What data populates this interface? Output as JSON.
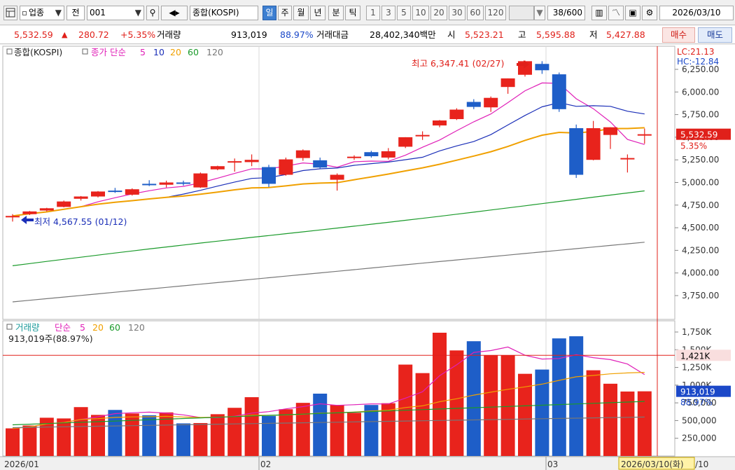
{
  "toolbar": {
    "market_label": "업종",
    "period_label": "전",
    "code": "001",
    "index_name": "종합(KOSPI)",
    "tabs": [
      {
        "label": "일",
        "active": true
      },
      {
        "label": "주",
        "active": false
      },
      {
        "label": "월",
        "active": false
      },
      {
        "label": "년",
        "active": false
      },
      {
        "label": "분",
        "active": false
      },
      {
        "label": "틱",
        "active": false
      }
    ],
    "intervals": [
      "1",
      "3",
      "5",
      "10",
      "20",
      "30",
      "60",
      "120"
    ],
    "count": "38",
    "count_total": "/600",
    "date": "2026/03/10"
  },
  "quote": {
    "price": "5,532.59",
    "change_arrow": "▲",
    "change": "280.72",
    "change_pct": "+5.35%",
    "volume_label": "거래량",
    "volume": "913,019",
    "volume_pct": "88.97%",
    "amount_label": "거래대금",
    "amount": "28,402,340백만",
    "open_label": "시",
    "open": "5,523.21",
    "high_label": "고",
    "high": "5,595.88",
    "low_label": "저",
    "low": "5,427.88",
    "buy_label": "매수",
    "sell_label": "매도"
  },
  "price_panel": {
    "legend_name": "종합(KOSPI)",
    "legend_ma_label": "종가 단순",
    "ma_periods": [
      "5",
      "10",
      "20",
      "60",
      "120"
    ],
    "ma_colors": [
      "#e020b8",
      "#1b2fb8",
      "#f0a000",
      "#1a9a2a",
      "#777777"
    ],
    "lc": "LC:21.13",
    "hc": "HC:-12.84",
    "high_annotation": "최고 6,347.41 (02/27)",
    "low_annotation": "최저 4,567.55 (01/12)",
    "current_price_tag": "5,532.59",
    "current_pct_tag": "5.35%"
  },
  "volume_panel": {
    "legend_name": "거래량",
    "legend_ma_label": "단순",
    "ma_periods": [
      "5",
      "20",
      "60",
      "120"
    ],
    "volume_text": "913,019주(88.97%)",
    "hline_tag": "1,421K",
    "current_tag": "913,019",
    "current_pct": "88.97%"
  },
  "x_axis": {
    "labels": [
      "2026/01",
      "02",
      "03"
    ],
    "cursor_date": "2026/03/10(화)",
    "cursor_tail": "/10"
  },
  "chart_data": {
    "type": "candlestick",
    "y_ticks": [
      3750,
      4000,
      4250,
      4500,
      4750,
      5000,
      5250,
      5500,
      5750,
      6000,
      6250
    ],
    "y_tick_labels": [
      "3,750.00",
      "4,000.00",
      "4,250.00",
      "4,500.00",
      "4,750.00",
      "5,000.00",
      "5,250.00",
      "5,500.00",
      "5,750.00",
      "6,000.00",
      "6,250.00"
    ],
    "vol_ticks": [
      250000,
      500000,
      750000,
      1000000,
      1250000,
      1500000,
      1750000
    ],
    "vol_tick_labels": [
      "250,000",
      "500,000",
      "750,000",
      "1,000K",
      "1,250K",
      "1,500K",
      "1,750K"
    ],
    "vol_hline": 1421000,
    "candles": [
      {
        "o": 4620,
        "h": 4650,
        "l": 4568,
        "c": 4630,
        "v": 390000
      },
      {
        "o": 4650,
        "h": 4685,
        "l": 4640,
        "c": 4680,
        "v": 430000
      },
      {
        "o": 4690,
        "h": 4720,
        "l": 4680,
        "c": 4715,
        "v": 540000
      },
      {
        "o": 4730,
        "h": 4800,
        "l": 4725,
        "c": 4790,
        "v": 530000
      },
      {
        "o": 4820,
        "h": 4850,
        "l": 4800,
        "c": 4845,
        "v": 690000
      },
      {
        "o": 4845,
        "h": 4905,
        "l": 4835,
        "c": 4900,
        "v": 580000
      },
      {
        "o": 4910,
        "h": 4940,
        "l": 4885,
        "c": 4905,
        "v": 650000
      },
      {
        "o": 4865,
        "h": 4935,
        "l": 4855,
        "c": 4925,
        "v": 600000
      },
      {
        "o": 4985,
        "h": 5025,
        "l": 4960,
        "c": 4970,
        "v": 575000
      },
      {
        "o": 4975,
        "h": 5020,
        "l": 4945,
        "c": 5000,
        "v": 615000
      },
      {
        "o": 5000,
        "h": 5020,
        "l": 4965,
        "c": 4985,
        "v": 460000
      },
      {
        "o": 4945,
        "h": 5110,
        "l": 4940,
        "c": 5100,
        "v": 465000
      },
      {
        "o": 5145,
        "h": 5185,
        "l": 5135,
        "c": 5180,
        "v": 590000
      },
      {
        "o": 5235,
        "h": 5265,
        "l": 5120,
        "c": 5235,
        "v": 680000
      },
      {
        "o": 5225,
        "h": 5310,
        "l": 5180,
        "c": 5250,
        "v": 830000
      },
      {
        "o": 5170,
        "h": 5195,
        "l": 4950,
        "c": 4985,
        "v": 565000
      },
      {
        "o": 5085,
        "h": 5275,
        "l": 5075,
        "c": 5255,
        "v": 660000
      },
      {
        "o": 5270,
        "h": 5365,
        "l": 5240,
        "c": 5355,
        "v": 750000
      },
      {
        "o": 5245,
        "h": 5275,
        "l": 5155,
        "c": 5165,
        "v": 880000
      },
      {
        "o": 5030,
        "h": 5100,
        "l": 4910,
        "c": 5085,
        "v": 720000
      },
      {
        "o": 5275,
        "h": 5300,
        "l": 5250,
        "c": 5285,
        "v": 610000
      },
      {
        "o": 5335,
        "h": 5350,
        "l": 5275,
        "c": 5290,
        "v": 720000
      },
      {
        "o": 5275,
        "h": 5380,
        "l": 5255,
        "c": 5345,
        "v": 745000
      },
      {
        "o": 5395,
        "h": 5500,
        "l": 5380,
        "c": 5500,
        "v": 1290000
      },
      {
        "o": 5515,
        "h": 5565,
        "l": 5470,
        "c": 5525,
        "v": 1170000
      },
      {
        "o": 5630,
        "h": 5690,
        "l": 5610,
        "c": 5685,
        "v": 1740000
      },
      {
        "o": 5700,
        "h": 5820,
        "l": 5690,
        "c": 5805,
        "v": 1490000
      },
      {
        "o": 5890,
        "h": 5920,
        "l": 5810,
        "c": 5835,
        "v": 1620000
      },
      {
        "o": 5830,
        "h": 5950,
        "l": 5780,
        "c": 5935,
        "v": 1420000
      },
      {
        "o": 6055,
        "h": 6150,
        "l": 5980,
        "c": 6150,
        "v": 1420000
      },
      {
        "o": 6190,
        "h": 6347,
        "l": 6170,
        "c": 6340,
        "v": 1160000
      },
      {
        "o": 6310,
        "h": 6340,
        "l": 6200,
        "c": 6240,
        "v": 1220000
      },
      {
        "o": 6195,
        "h": 6215,
        "l": 5780,
        "c": 5810,
        "v": 1660000
      },
      {
        "o": 5600,
        "h": 5640,
        "l": 5050,
        "c": 5085,
        "v": 1690000
      },
      {
        "o": 5250,
        "h": 5680,
        "l": 5245,
        "c": 5600,
        "v": 1210000
      },
      {
        "o": 5525,
        "h": 5610,
        "l": 5370,
        "c": 5610,
        "v": 1020000
      },
      {
        "o": 5260,
        "h": 5310,
        "l": 5110,
        "c": 5270,
        "v": 910000
      },
      {
        "o": 5523,
        "h": 5596,
        "l": 5428,
        "c": 5533,
        "v": 913019
      }
    ]
  }
}
